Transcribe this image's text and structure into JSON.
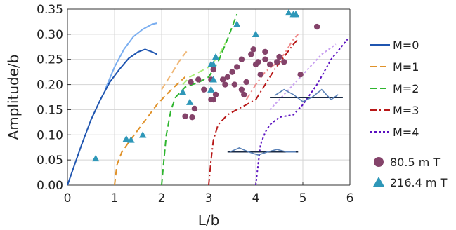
{
  "chart_data": {
    "type": "scatter",
    "xlabel": "L/b",
    "ylabel": "Amplitude/b",
    "xlim": [
      0,
      6
    ],
    "ylim": [
      0,
      0.35
    ],
    "x_ticks": [
      "0",
      "1",
      "2",
      "3",
      "4",
      "5",
      "6"
    ],
    "y_ticks": [
      "0.00",
      "0.05",
      "0.10",
      "0.15",
      "0.20",
      "0.25",
      "0.30",
      "0.35"
    ],
    "grid": true,
    "legend_position": "right",
    "lines": [
      {
        "name": "M=0",
        "color": "#1f55b0",
        "dash": "solid",
        "points": [
          [
            0.0,
            0.0
          ],
          [
            0.15,
            0.04
          ],
          [
            0.3,
            0.08
          ],
          [
            0.5,
            0.13
          ],
          [
            0.7,
            0.17
          ],
          [
            0.9,
            0.205
          ],
          [
            1.1,
            0.23
          ],
          [
            1.3,
            0.252
          ],
          [
            1.5,
            0.265
          ],
          [
            1.65,
            0.27
          ],
          [
            1.8,
            0.265
          ],
          [
            1.9,
            0.26
          ]
        ],
        "extension": {
          "color": "#7aaef0",
          "points": [
            [
              0.8,
              0.19
            ],
            [
              1.0,
              0.235
            ],
            [
              1.2,
              0.27
            ],
            [
              1.4,
              0.295
            ],
            [
              1.6,
              0.31
            ],
            [
              1.8,
              0.32
            ],
            [
              1.9,
              0.322
            ]
          ]
        }
      },
      {
        "name": "M=1",
        "color": "#e0922a",
        "dash": "dashed",
        "points": [
          [
            1.0,
            0.0
          ],
          [
            1.05,
            0.04
          ],
          [
            1.15,
            0.065
          ],
          [
            1.3,
            0.085
          ],
          [
            1.5,
            0.11
          ],
          [
            1.7,
            0.135
          ],
          [
            1.9,
            0.16
          ],
          [
            2.1,
            0.18
          ],
          [
            2.3,
            0.198
          ],
          [
            2.5,
            0.215
          ]
        ],
        "extension": {
          "color": "#f0b878",
          "points": [
            [
              2.0,
              0.19
            ],
            [
              2.2,
              0.22
            ],
            [
              2.4,
              0.25
            ],
            [
              2.55,
              0.268
            ]
          ]
        }
      },
      {
        "name": "M=2",
        "color": "#2fb52f",
        "dash": "dashed",
        "points": [
          [
            2.0,
            0.0
          ],
          [
            2.05,
            0.05
          ],
          [
            2.1,
            0.1
          ],
          [
            2.2,
            0.15
          ],
          [
            2.3,
            0.175
          ],
          [
            2.5,
            0.195
          ],
          [
            2.8,
            0.205
          ],
          [
            3.0,
            0.215
          ],
          [
            3.2,
            0.245
          ],
          [
            3.4,
            0.29
          ],
          [
            3.6,
            0.34
          ]
        ],
        "extension": {
          "color": "#a8ee78",
          "points": [
            [
              2.45,
              0.2
            ],
            [
              2.6,
              0.215
            ],
            [
              2.8,
              0.225
            ],
            [
              3.0,
              0.235
            ],
            [
              3.2,
              0.255
            ],
            [
              3.4,
              0.29
            ]
          ]
        }
      },
      {
        "name": "M=3",
        "color": "#b81818",
        "dash": "dashdot",
        "points": [
          [
            3.0,
            0.0
          ],
          [
            3.05,
            0.05
          ],
          [
            3.1,
            0.09
          ],
          [
            3.2,
            0.12
          ],
          [
            3.4,
            0.14
          ],
          [
            3.6,
            0.15
          ],
          [
            3.8,
            0.16
          ],
          [
            4.0,
            0.17
          ],
          [
            4.2,
            0.2
          ],
          [
            4.4,
            0.23
          ],
          [
            4.6,
            0.255
          ],
          [
            4.8,
            0.28
          ],
          [
            4.9,
            0.29
          ]
        ],
        "extension": {
          "color": "#f08a8a",
          "points": [
            [
              3.8,
              0.17
            ],
            [
              4.0,
              0.2
            ],
            [
              4.2,
              0.225
            ],
            [
              4.4,
              0.24
            ],
            [
              4.6,
              0.26
            ],
            [
              4.8,
              0.29
            ],
            [
              4.9,
              0.3
            ]
          ]
        }
      },
      {
        "name": "M=4",
        "color": "#5a10c0",
        "dash": "dotted",
        "points": [
          [
            4.0,
            0.0
          ],
          [
            4.05,
            0.04
          ],
          [
            4.1,
            0.08
          ],
          [
            4.2,
            0.105
          ],
          [
            4.3,
            0.12
          ],
          [
            4.5,
            0.135
          ],
          [
            4.8,
            0.14
          ],
          [
            5.0,
            0.16
          ],
          [
            5.3,
            0.2
          ],
          [
            5.6,
            0.25
          ],
          [
            5.95,
            0.29
          ]
        ],
        "extension": {
          "color": "#c8a0f0",
          "points": [
            [
              4.3,
              0.15
            ],
            [
              4.5,
              0.17
            ],
            [
              4.8,
              0.2
            ],
            [
              5.1,
              0.23
            ],
            [
              5.4,
              0.26
            ],
            [
              5.7,
              0.28
            ]
          ]
        }
      }
    ],
    "scatter_series": [
      {
        "name": "80.5 m T",
        "marker": "circle",
        "color": "#84436a",
        "points": [
          [
            2.5,
            0.137
          ],
          [
            2.65,
            0.135
          ],
          [
            2.7,
            0.152
          ],
          [
            2.62,
            0.205
          ],
          [
            2.78,
            0.21
          ],
          [
            2.9,
            0.19
          ],
          [
            3.05,
            0.21
          ],
          [
            3.1,
            0.23
          ],
          [
            3.15,
            0.18
          ],
          [
            3.05,
            0.17
          ],
          [
            3.1,
            0.17
          ],
          [
            3.3,
            0.21
          ],
          [
            3.35,
            0.2
          ],
          [
            3.4,
            0.215
          ],
          [
            3.5,
            0.225
          ],
          [
            3.6,
            0.235
          ],
          [
            3.55,
            0.2
          ],
          [
            3.7,
            0.25
          ],
          [
            3.75,
            0.18
          ],
          [
            3.8,
            0.205
          ],
          [
            3.7,
            0.19
          ],
          [
            3.9,
            0.26
          ],
          [
            3.95,
            0.27
          ],
          [
            4.0,
            0.24
          ],
          [
            4.05,
            0.245
          ],
          [
            4.2,
            0.25
          ],
          [
            4.1,
            0.22
          ],
          [
            4.3,
            0.24
          ],
          [
            4.45,
            0.245
          ],
          [
            4.5,
            0.255
          ],
          [
            4.6,
            0.245
          ],
          [
            4.2,
            0.265
          ],
          [
            4.95,
            0.22
          ],
          [
            5.3,
            0.315
          ]
        ]
      },
      {
        "name": "216.4 m T",
        "marker": "triangle",
        "color": "#2e97b8",
        "points": [
          [
            0.6,
            0.053
          ],
          [
            1.25,
            0.092
          ],
          [
            1.35,
            0.09
          ],
          [
            1.6,
            0.1
          ],
          [
            2.45,
            0.185
          ],
          [
            2.6,
            0.165
          ],
          [
            3.05,
            0.24
          ],
          [
            3.1,
            0.24
          ],
          [
            3.15,
            0.255
          ],
          [
            3.1,
            0.21
          ],
          [
            3.05,
            0.19
          ],
          [
            3.6,
            0.32
          ],
          [
            4.0,
            0.3
          ],
          [
            4.7,
            0.343
          ],
          [
            4.8,
            0.34
          ],
          [
            4.85,
            0.34
          ]
        ]
      }
    ],
    "insets": [
      {
        "axis": [
          [
            3.4,
            0.066
          ],
          [
            4.9,
            0.066
          ]
        ],
        "wave": [
          [
            3.45,
            0.066
          ],
          [
            3.65,
            0.074
          ],
          [
            3.85,
            0.066
          ],
          [
            4.05,
            0.06
          ],
          [
            4.25,
            0.066
          ],
          [
            4.45,
            0.071
          ],
          [
            4.65,
            0.066
          ],
          [
            4.85,
            0.066
          ]
        ]
      },
      {
        "axis": [
          [
            4.3,
            0.174
          ],
          [
            5.85,
            0.174
          ]
        ],
        "wave": [
          [
            4.4,
            0.178
          ],
          [
            4.6,
            0.19
          ],
          [
            4.8,
            0.18
          ],
          [
            5.0,
            0.166
          ],
          [
            5.2,
            0.175
          ],
          [
            5.4,
            0.19
          ],
          [
            5.6,
            0.17
          ],
          [
            5.75,
            0.18
          ]
        ]
      }
    ]
  }
}
